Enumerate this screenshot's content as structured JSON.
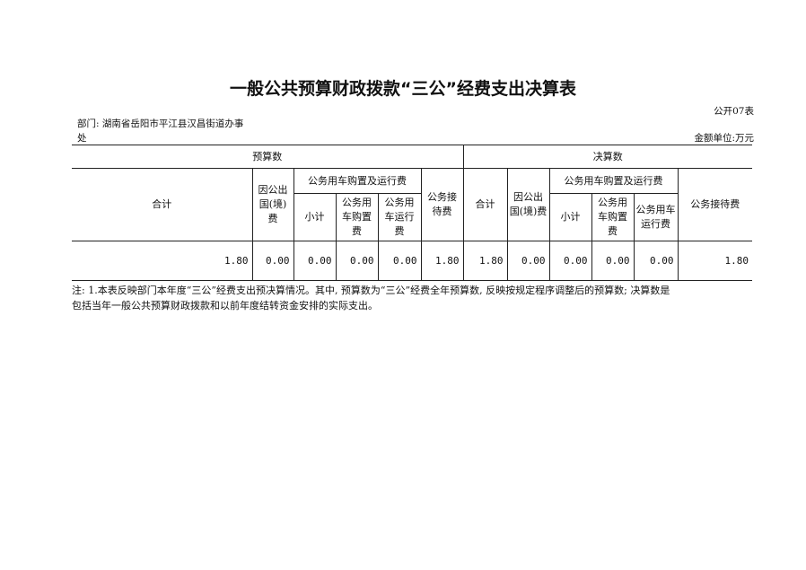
{
  "title": "一般公共预算财政拨款“三公”经费支出决算表",
  "form_no": "公开07表",
  "department_line1": "部门: 湖南省岳阳市平江县汉昌街道办事",
  "department_line2": "处",
  "unit": "金额单位:万元",
  "headers": {
    "budget": "预算数",
    "final": "决算数",
    "total": "合计",
    "abroad": "因公出国(境)费",
    "vehicle": "公务用车购置及运行费",
    "subtotal": "小计",
    "purchase": "公务用车购置费",
    "operation": "公务用车运行费",
    "reception_short": "公务接待费",
    "reception": "公务接待费"
  },
  "values": [
    "1.80",
    "0.00",
    "0.00",
    "0.00",
    "0.00",
    "1.80",
    "1.80",
    "0.00",
    "0.00",
    "0.00",
    "0.00",
    "1.80"
  ],
  "note_line1": "注: 1.本表反映部门本年度“三公”经费支出预决算情况。其中, 预算数为“三公”经费全年预算数, 反映按规定程序调整后的预算数; 决算数是",
  "note_line2": "包括当年一般公共预算财政拨款和以前年度结转资金安排的实际支出。"
}
